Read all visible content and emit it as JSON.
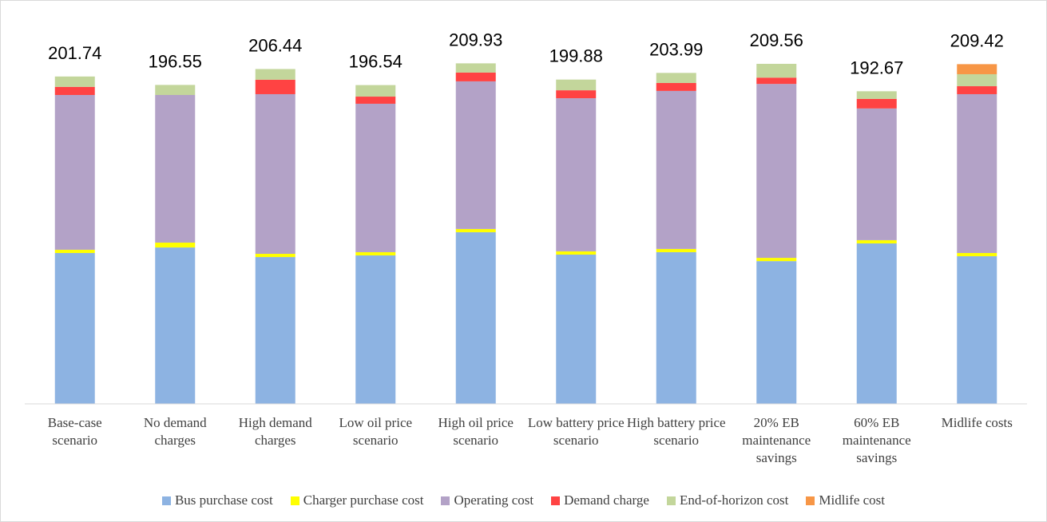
{
  "chart_data": {
    "type": "stacked_bar",
    "categories": [
      "Base-case scenario",
      "No demand charges",
      "High demand charges",
      "Low oil price scenario",
      "High oil price scenario",
      "Low battery price scenario",
      "High battery price scenario",
      "20% EB maintenance savings",
      "60% EB maintenance savings",
      "Midlife costs"
    ],
    "totals": [
      201.74,
      196.55,
      206.44,
      196.54,
      209.93,
      199.88,
      203.99,
      209.56,
      192.67,
      209.42
    ],
    "series": [
      {
        "name": "Bus purchase cost",
        "color": "#8db3e2",
        "values": [
          93,
          96.4,
          90.5,
          91.5,
          105.8,
          92,
          93.5,
          88,
          98.9,
          91
        ]
      },
      {
        "name": "Charger purchase cost",
        "color": "#ffff00",
        "values": [
          2,
          3,
          2,
          2,
          2,
          2,
          2,
          2,
          2,
          2
        ]
      },
      {
        "name": "Operating cost",
        "color": "#b3a2c7",
        "values": [
          95.4,
          91,
          98.4,
          91.5,
          91,
          94.4,
          97.4,
          107.2,
          81.2,
          97.9
        ]
      },
      {
        "name": "Demand charge",
        "color": "#ff4343",
        "values": [
          5,
          0,
          8.9,
          4.4,
          5.4,
          4.9,
          4.9,
          3.9,
          5.9,
          4.9
        ]
      },
      {
        "name": "End-of-horizon cost",
        "color": "#c3d69b",
        "values": [
          6.4,
          6.2,
          6.6,
          7.1,
          5.7,
          6.6,
          6.2,
          8.5,
          4.7,
          7.4
        ]
      },
      {
        "name": "Midlife cost",
        "color": "#f79646",
        "values": [
          0,
          0,
          0,
          0,
          0,
          0,
          0,
          0,
          0,
          6.2
        ]
      }
    ],
    "ylim": [
      0,
      215
    ]
  }
}
